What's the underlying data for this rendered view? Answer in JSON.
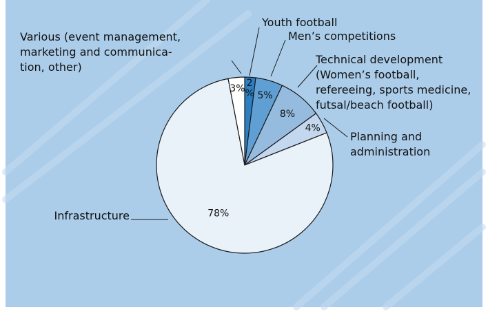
{
  "chart_data": {
    "type": "pie",
    "unit": "%",
    "slices": [
      {
        "label": "Youth football",
        "label_lines": [
          "Youth football"
        ],
        "value": 2,
        "display": [
          "2",
          "%"
        ],
        "color": "#2d7fc4"
      },
      {
        "label": "Men’s competitions",
        "label_lines": [
          "Men’s competitions"
        ],
        "value": 5,
        "display": [
          "5%"
        ],
        "color": "#5f9fd3"
      },
      {
        "label": "Technical development (Women’s football, refereeing, sports medicine, futsal/beach football)",
        "label_lines": [
          "Technical development",
          "(Women’s football,",
          "refereeing, sports medicine,",
          " futsal/beach football)"
        ],
        "value": 8,
        "display": [
          "8%"
        ],
        "color": "#95bbdf"
      },
      {
        "label": "Planning and administration",
        "label_lines": [
          "Planning and",
          "administration"
        ],
        "value": 4,
        "display": [
          "4%"
        ],
        "color": "#c3d8ee"
      },
      {
        "label": "Infrastructure",
        "label_lines": [
          "Infrastructure"
        ],
        "value": 78,
        "display": [
          "78%"
        ],
        "color": "#e9f1f9"
      },
      {
        "label": "Various (event management, marketing and communication, other)",
        "label_lines": [
          "Various (event management,",
          "marketing and communica-",
          "tion, other)"
        ],
        "value": 3,
        "display": [
          "3%"
        ],
        "color": "#ffffff"
      }
    ],
    "legend": "none",
    "colors": {
      "background": "#abcdea",
      "stripe": "#c4dcf0",
      "outline": "#1a1a1a",
      "frame": "#ffffff"
    }
  }
}
